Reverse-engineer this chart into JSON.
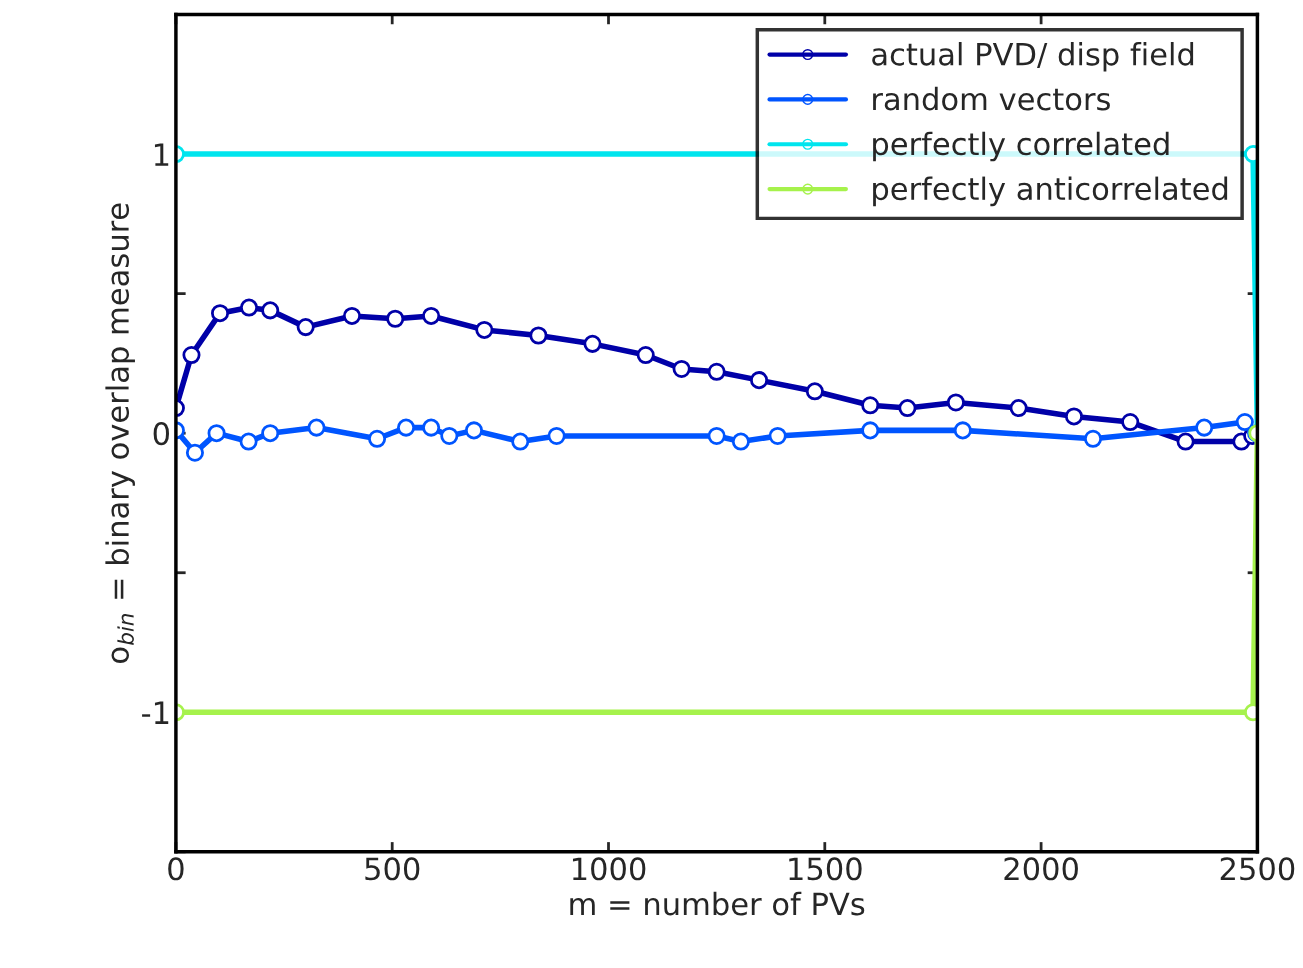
{
  "chart_data": {
    "type": "line",
    "xlabel": "m = number of PVs",
    "ylabel": "o$_{bin}$ = binary overlap measure",
    "xlim": [
      0,
      2500
    ],
    "xticks": [
      0,
      500,
      1000,
      1500,
      2000,
      2500
    ],
    "ylim": [
      -1.5,
      1.5
    ],
    "yticks": [
      {
        "value": -1.5,
        "label": null
      },
      -1,
      {
        "value": -0.5,
        "label": null
      },
      0,
      {
        "value": 0.5,
        "label": null
      },
      1,
      {
        "value": 1.5,
        "label": null
      }
    ],
    "legend": "top right",
    "marker": "circle",
    "line_style": "solid",
    "grid": false,
    "series": [
      {
        "name": "actual PVD/ disp field",
        "color": "#0000a8",
        "x": [
          0,
          36,
          102,
          169,
          218,
          300,
          407,
          507,
          590,
          713,
          838,
          963,
          1086,
          1169,
          1250,
          1348,
          1477,
          1605,
          1691,
          1803,
          1948,
          2076,
          2206,
          2334,
          2463,
          2488
        ],
        "values": [
          0.09,
          0.28,
          0.43,
          0.45,
          0.44,
          0.38,
          0.42,
          0.41,
          0.42,
          0.37,
          0.35,
          0.32,
          0.28,
          0.23,
          0.22,
          0.19,
          0.15,
          0.1,
          0.09,
          0.11,
          0.09,
          0.06,
          0.04,
          -0.03,
          -0.03,
          -0.01
        ]
      },
      {
        "name": "random vectors",
        "color": "#0055ff",
        "x": [
          0,
          44,
          94,
          168,
          218,
          325,
          465,
          532,
          590,
          632,
          689,
          796,
          880,
          1250,
          1306,
          1391,
          1605,
          1819,
          2120,
          2377,
          2471,
          2497
        ],
        "values": [
          0.01,
          -0.07,
          0.0,
          -0.03,
          0.0,
          0.02,
          -0.02,
          0.02,
          0.02,
          -0.01,
          0.01,
          -0.03,
          -0.01,
          -0.01,
          -0.03,
          -0.01,
          0.01,
          0.01,
          -0.02,
          0.02,
          0.04,
          0.0
        ]
      },
      {
        "name": "perfectly correlated",
        "color": "#00e5ee",
        "x": [
          0,
          2490,
          2500
        ],
        "values": [
          1,
          1,
          0
        ]
      },
      {
        "name": "perfectly anticorrelated",
        "color": "#a6f24c",
        "x": [
          0,
          2490,
          2500
        ],
        "values": [
          -1,
          -1,
          0
        ]
      }
    ]
  }
}
